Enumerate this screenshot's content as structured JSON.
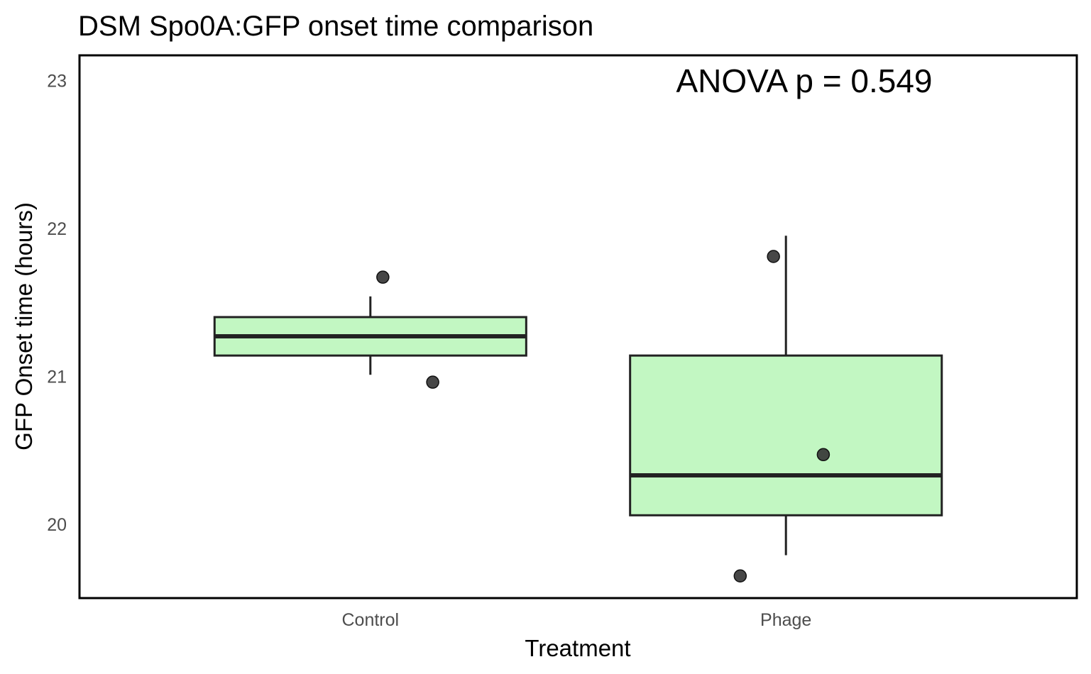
{
  "chart_data": {
    "type": "boxplot",
    "title": "DSM Spo0A:GFP onset time comparison",
    "xlabel": "Treatment",
    "ylabel": "GFP Onset time (hours)",
    "categories": [
      "Control",
      "Phage"
    ],
    "ylim": [
      19.5,
      23.17
    ],
    "yticks": [
      20,
      21,
      22,
      23
    ],
    "grid": false,
    "annotation": "ANOVA p = 0.549",
    "colors": {
      "box_fill": "#c2f7c2",
      "box_stroke": "#222222",
      "point": "#333333",
      "frame": "#000000"
    },
    "boxes": [
      {
        "category": "Control",
        "whisker_low": 21.01,
        "q1": 21.14,
        "median": 21.27,
        "q3": 21.4,
        "whisker_high": 21.54
      },
      {
        "category": "Phage",
        "whisker_low": 19.79,
        "q1": 20.06,
        "median": 20.33,
        "q3": 21.14,
        "whisker_high": 21.95
      }
    ],
    "points": [
      {
        "category": "Control",
        "y": 21.67,
        "jitter": 0.03
      },
      {
        "category": "Control",
        "y": 20.96,
        "jitter": 0.15
      },
      {
        "category": "Phage",
        "y": 21.81,
        "jitter": -0.03
      },
      {
        "category": "Phage",
        "y": 20.47,
        "jitter": 0.09
      },
      {
        "category": "Phage",
        "y": 19.65,
        "jitter": -0.11
      }
    ]
  }
}
